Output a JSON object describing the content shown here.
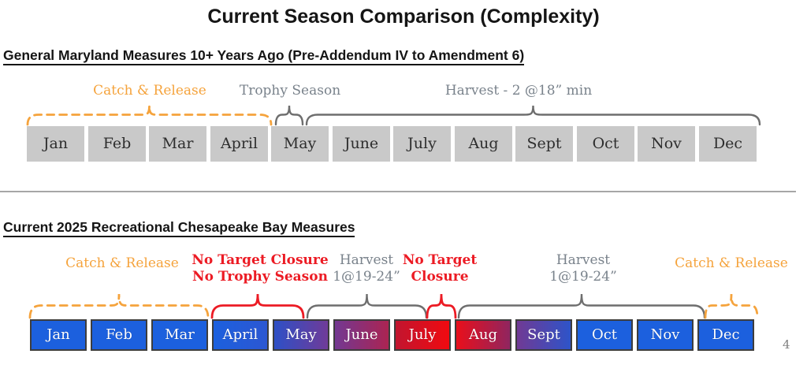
{
  "title": "Current Season Comparison (Complexity)",
  "page_number": "4",
  "colors": {
    "orange": "#F5A33C",
    "red": "#EC1B24",
    "gray_brace": "#6E6E6E",
    "gray_label": "#79828B",
    "blue": "#1C60DE",
    "old_cell_gray": "#C9C9C9"
  },
  "months": [
    "Jan",
    "Feb",
    "Mar",
    "April",
    "May",
    "June",
    "July",
    "Aug",
    "Sept",
    "Oct",
    "Nov",
    "Dec"
  ],
  "section1": {
    "heading": "General Maryland Measures 10+ Years Ago (Pre-Addendum IV to Amendment 6)",
    "catch_release_label": "Catch & Release",
    "trophy_label": "Trophy Season",
    "harvest_label": "Harvest - 2 @18” min"
  },
  "section2": {
    "heading": "Current 2025 Recreational Chesapeake Bay Measures",
    "catch_release_left_label": "Catch & Release",
    "no_target_april": {
      "line1": "No Target Closure",
      "line2": "No Trophy Season"
    },
    "harvest_spring": {
      "line1": "Harvest",
      "line2": "1@19-24”"
    },
    "no_target_july": {
      "line1": "No Target",
      "line2": "Closure"
    },
    "harvest_fall": {
      "line1": "Harvest",
      "line2": "1@19-24”"
    },
    "catch_release_right_label": "Catch & Release",
    "season_colors": [
      {
        "from": "#1C60DE",
        "to": "#1C60DE"
      },
      {
        "from": "#1C60DE",
        "to": "#1C60DE"
      },
      {
        "from": "#1C60DE",
        "to": "#1C60DE"
      },
      {
        "from": "#1C60DE",
        "to": "#2C57D2"
      },
      {
        "from": "#2E50C6",
        "to": "#6F3B99"
      },
      {
        "from": "#733892",
        "to": "#AB2452"
      },
      {
        "from": "#C2152F",
        "to": "#F00A10"
      },
      {
        "from": "#E90F1B",
        "to": "#90255F"
      },
      {
        "from": "#703A94",
        "to": "#2E54C9"
      },
      {
        "from": "#1C60DE",
        "to": "#1C60DE"
      },
      {
        "from": "#1C60DE",
        "to": "#1C60DE"
      },
      {
        "from": "#1C60DE",
        "to": "#1C60DE"
      }
    ]
  }
}
